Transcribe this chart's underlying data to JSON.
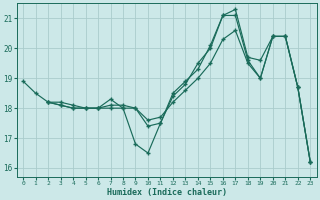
{
  "xlabel": "Humidex (Indice chaleur)",
  "bg_color": "#cce8e8",
  "grid_color": "#aacccc",
  "line_color": "#1a6b5a",
  "xlim": [
    -0.5,
    23.5
  ],
  "ylim": [
    15.7,
    21.5
  ],
  "yticks": [
    16,
    17,
    18,
    19,
    20,
    21
  ],
  "xticks": [
    0,
    1,
    2,
    3,
    4,
    5,
    6,
    7,
    8,
    9,
    10,
    11,
    12,
    13,
    14,
    15,
    16,
    17,
    18,
    19,
    20,
    21,
    22,
    23
  ],
  "line1_x": [
    0,
    1,
    2,
    3,
    4,
    5,
    6,
    7,
    8,
    9,
    10,
    11,
    12,
    13,
    14,
    15,
    16,
    17,
    18,
    19,
    20,
    21,
    22,
    23
  ],
  "line1_y": [
    18.9,
    18.5,
    18.2,
    18.2,
    18.1,
    18.0,
    18.0,
    18.1,
    18.1,
    18.0,
    17.4,
    17.5,
    18.4,
    18.8,
    19.5,
    20.0,
    21.1,
    21.1,
    19.6,
    19.0,
    20.4,
    20.4,
    18.7,
    16.2
  ],
  "line2_x": [
    2,
    3,
    4,
    5,
    6,
    7,
    8,
    9,
    10,
    11,
    12,
    13,
    14,
    15,
    16,
    17,
    18,
    19,
    20,
    21,
    22,
    23
  ],
  "line2_y": [
    18.2,
    18.1,
    18.0,
    18.0,
    18.0,
    18.3,
    18.0,
    16.8,
    16.5,
    17.5,
    18.5,
    18.9,
    19.3,
    20.1,
    21.1,
    21.3,
    19.7,
    19.6,
    20.4,
    20.4,
    18.7,
    16.2
  ],
  "line3_x": [
    2,
    3,
    4,
    5,
    6,
    7,
    8,
    9,
    10,
    11,
    12,
    13,
    14,
    15,
    16,
    17,
    18,
    19,
    20,
    21,
    22,
    23
  ],
  "line3_y": [
    18.2,
    18.1,
    18.0,
    18.0,
    18.0,
    18.0,
    18.0,
    18.0,
    17.6,
    17.7,
    18.2,
    18.6,
    19.0,
    19.5,
    20.3,
    20.6,
    19.5,
    19.0,
    20.4,
    20.4,
    18.7,
    16.2
  ]
}
